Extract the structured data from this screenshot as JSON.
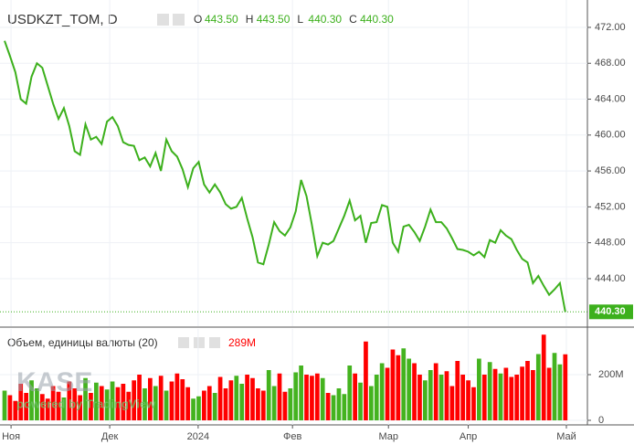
{
  "chart_data": [
    {
      "type": "line",
      "title": "USDKZT_TOM, D",
      "color": "#3cb01c",
      "ohlc": [
        {
          "key": "O",
          "label": "443.50"
        },
        {
          "key": "H",
          "label": "443.50"
        },
        {
          "key": "L",
          "label": "440.30"
        },
        {
          "key": "C",
          "label": "440.30"
        }
      ],
      "last_label": "440.30",
      "x": [
        0,
        1,
        2,
        3,
        4,
        5,
        6,
        7,
        8,
        9,
        10,
        11,
        12,
        13,
        14,
        15,
        16,
        17,
        18,
        19,
        20,
        21,
        22,
        23,
        24,
        25,
        26,
        27,
        28,
        29,
        30,
        31,
        32,
        33,
        34,
        35,
        36,
        37,
        38,
        39,
        40,
        41,
        42,
        43,
        44,
        45,
        46,
        47,
        48,
        49,
        50,
        51,
        52,
        53,
        54,
        55,
        56,
        57,
        58,
        59,
        60,
        61,
        62,
        63,
        64,
        65,
        66,
        67,
        68,
        69,
        70,
        71,
        72,
        73,
        74,
        75,
        76,
        77,
        78,
        79,
        80,
        81,
        82,
        83,
        84,
        85,
        86,
        87,
        88,
        89,
        90,
        91,
        92,
        93,
        94,
        95,
        96,
        97,
        98,
        99,
        100,
        101,
        102,
        103,
        104
      ],
      "values": [
        470.5,
        468.8,
        467,
        464,
        463.5,
        466.5,
        468,
        467.5,
        465.5,
        463.5,
        461.8,
        463,
        461,
        458.2,
        457.8,
        461.2,
        459.5,
        459.8,
        459,
        461.5,
        462,
        461,
        459.2,
        458.9,
        458.8,
        457.2,
        457.5,
        456.5,
        458,
        456,
        459.5,
        458.2,
        457.6,
        456.2,
        454.2,
        456.3,
        457,
        454.5,
        453.6,
        454.5,
        453.6,
        452.3,
        451.8,
        452,
        453,
        450.7,
        448.6,
        445.8,
        445.6,
        447.8,
        450.3,
        449.3,
        448.8,
        449.7,
        451.5,
        455,
        453.2,
        450,
        446.5,
        448,
        447.8,
        448.2,
        449.6,
        451,
        452.7,
        450.5,
        451,
        448,
        450.2,
        450.3,
        452.2,
        452,
        448,
        447,
        449.8,
        450,
        449.2,
        448.2,
        449.8,
        451.7,
        450.3,
        450.3,
        449.6,
        448.5,
        447.3,
        447.2,
        447,
        446.6,
        447,
        446.4,
        448.3,
        448,
        449.4,
        448.8,
        448.4,
        447.2,
        446.2,
        445.8,
        443.5,
        444.3,
        443.2,
        442.2,
        442.8,
        443.5,
        440.3
      ],
      "xlim": [
        -0.85,
        108.1
      ],
      "xticks": [
        {
          "value": 1.2,
          "label": "Ноя"
        },
        {
          "value": 19.5,
          "label": "Дек"
        },
        {
          "value": 35.9,
          "label": "2024"
        },
        {
          "value": 53.4,
          "label": "Фев"
        },
        {
          "value": 71.2,
          "label": "Мар"
        },
        {
          "value": 86,
          "label": "Апр"
        },
        {
          "value": 104.2,
          "label": "Май"
        }
      ],
      "ylim": [
        438.7,
        475.05
      ],
      "yticks": [
        {
          "value": 444,
          "label": "444.00"
        },
        {
          "value": 448,
          "label": "448.00"
        },
        {
          "value": 452,
          "label": "452.00"
        },
        {
          "value": 456,
          "label": "456.00"
        },
        {
          "value": 460,
          "label": "460.00"
        },
        {
          "value": 464,
          "label": "464.00"
        },
        {
          "value": 468,
          "label": "468.00"
        },
        {
          "value": 472,
          "label": "472.00"
        }
      ],
      "grid": true,
      "watermark": "KASE",
      "credit": "powered by TradingView"
    },
    {
      "type": "volume",
      "title": "Объем, единицы валюты (20)",
      "value_label": "289M",
      "up_color": "#44b31f",
      "down_color": "#ff0000",
      "values": [
        130000000,
        110000000,
        85000000,
        160000000,
        120000000,
        175000000,
        140000000,
        115000000,
        95000000,
        150000000,
        125000000,
        100000000,
        170000000,
        140000000,
        110000000,
        185000000,
        120000000,
        165000000,
        150000000,
        135000000,
        170000000,
        145000000,
        160000000,
        125000000,
        175000000,
        200000000,
        140000000,
        185000000,
        150000000,
        195000000,
        130000000,
        170000000,
        205000000,
        180000000,
        145000000,
        95000000,
        105000000,
        130000000,
        150000000,
        120000000,
        190000000,
        140000000,
        175000000,
        195000000,
        160000000,
        200000000,
        185000000,
        140000000,
        130000000,
        220000000,
        150000000,
        205000000,
        125000000,
        140000000,
        210000000,
        240000000,
        200000000,
        195000000,
        205000000,
        185000000,
        120000000,
        110000000,
        140000000,
        115000000,
        240000000,
        205000000,
        165000000,
        345000000,
        150000000,
        200000000,
        250000000,
        230000000,
        310000000,
        285000000,
        315000000,
        270000000,
        250000000,
        200000000,
        175000000,
        220000000,
        250000000,
        200000000,
        215000000,
        150000000,
        260000000,
        200000000,
        175000000,
        145000000,
        270000000,
        200000000,
        255000000,
        225000000,
        205000000,
        230000000,
        190000000,
        200000000,
        235000000,
        260000000,
        220000000,
        290000000,
        375000000,
        230000000,
        295000000,
        245000000,
        289000000
      ],
      "ylim": [
        -20000000,
        400000000
      ],
      "yticks": [
        0,
        {
          "value": 200000000,
          "label": "200M"
        }
      ]
    }
  ]
}
